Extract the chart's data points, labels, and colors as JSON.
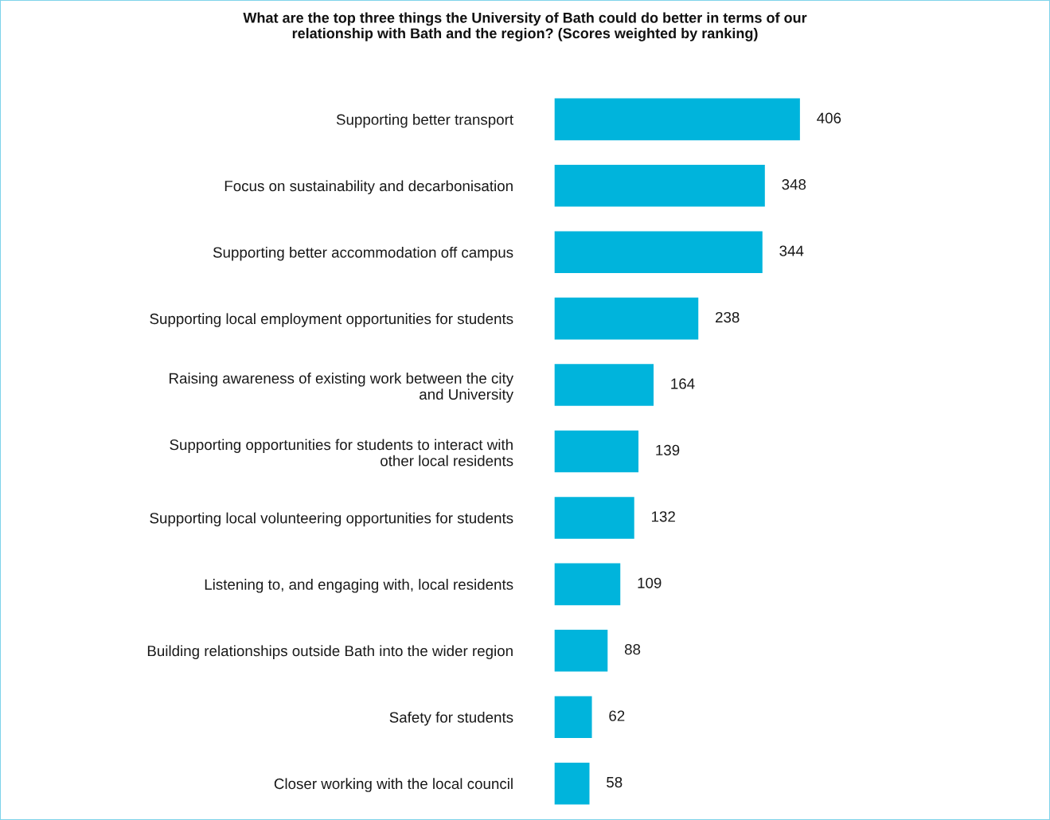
{
  "chart_data": {
    "type": "bar",
    "orientation": "horizontal",
    "title": "What are the top three things the University of Bath could do better in terms of our\nrelationship with Bath and the region? (Scores weighted by ranking)",
    "categories": [
      "Supporting better transport",
      "Focus on sustainability and decarbonisation",
      "Supporting better accommodation off campus",
      "Supporting local employment opportunities for students",
      "Raising awareness of existing work between the city\nand University",
      "Supporting opportunities for students to interact with\nother local residents",
      "Supporting local volunteering opportunities for students",
      "Listening to, and engaging with, local residents",
      "Building relationships outside Bath into the wider region",
      "Safety for students",
      "Closer working with the local council"
    ],
    "values": [
      406,
      348,
      344,
      238,
      164,
      139,
      132,
      109,
      88,
      62,
      58
    ],
    "color": "#00b4dc",
    "data_labels": true,
    "grid": false
  }
}
